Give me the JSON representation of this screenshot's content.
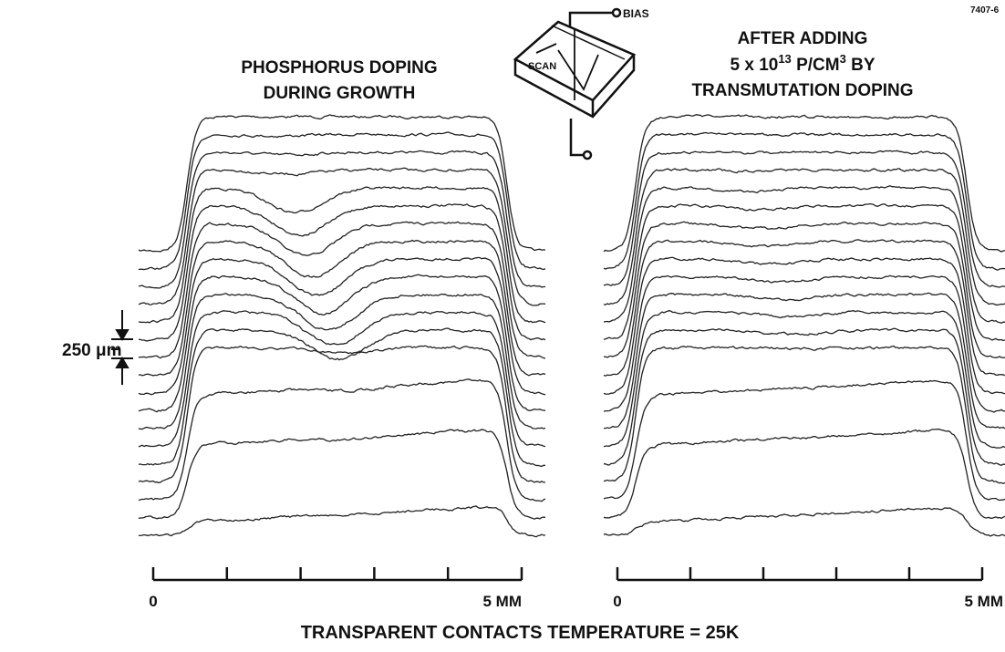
{
  "figure_id": "7407-6",
  "left_panel": {
    "title_lines": [
      "PHOSPHORUS DOPING",
      "DURING GROWTH"
    ],
    "axis_start": "0",
    "axis_end": "5 MM"
  },
  "right_panel": {
    "title_lines": [
      "AFTER ADDING",
      "5 x 10",
      "13",
      " P/CM",
      "3",
      " BY",
      "TRANSMUTATION DOPING"
    ],
    "axis_start": "0",
    "axis_end": "5 MM"
  },
  "inset": {
    "bias": "BIAS",
    "scan": "SCAN"
  },
  "scale_bar": "250 μm",
  "caption": "TRANSPARENT CONTACTS  TEMPERATURE = 25K"
}
